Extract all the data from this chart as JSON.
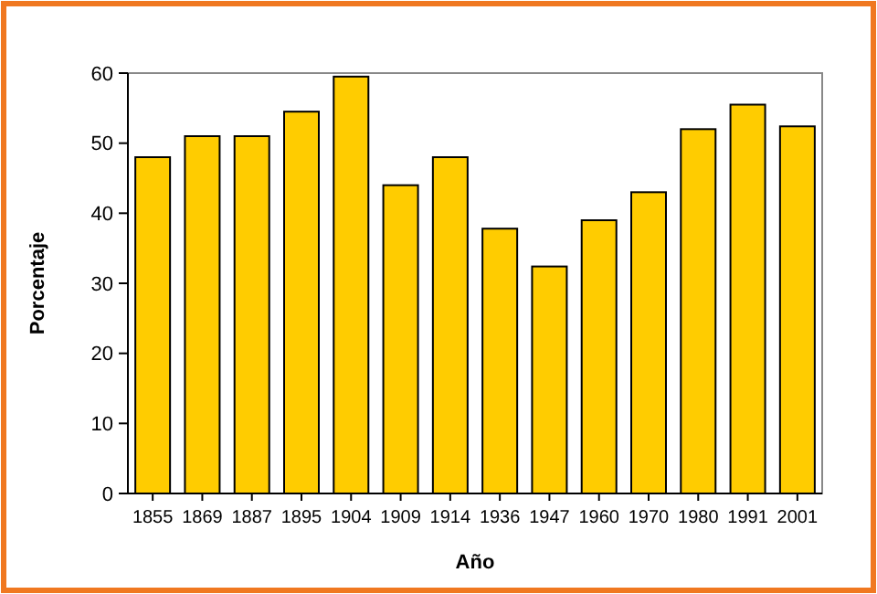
{
  "chart_data": {
    "type": "bar",
    "xlabel": "Año",
    "ylabel": "Porcentaje",
    "categories": [
      "1855",
      "1869",
      "1887",
      "1895",
      "1904",
      "1909",
      "1914",
      "1936",
      "1947",
      "1960",
      "1970",
      "1980",
      "1991",
      "2001"
    ],
    "values": [
      48,
      51,
      51,
      54.5,
      59.5,
      44,
      48,
      37.8,
      32.4,
      39,
      43,
      52,
      55.5,
      52.4
    ],
    "color": "#ffcc00",
    "ylim": [
      0,
      60
    ],
    "yticks": [
      0,
      10,
      20,
      30,
      40,
      50,
      60
    ],
    "grid": false
  }
}
